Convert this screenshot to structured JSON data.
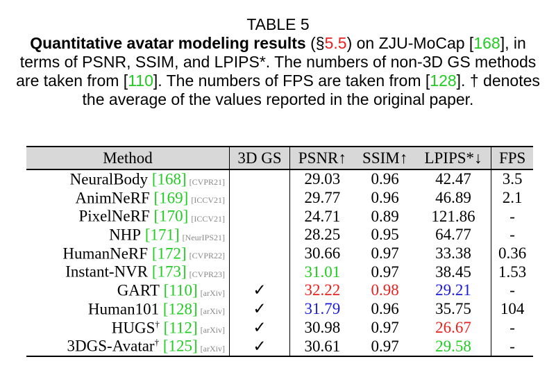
{
  "caption": {
    "label": "TABLE 5",
    "title": "Quantitative avatar modeling results",
    "sec_open": " (§",
    "sec": "5.5",
    "on_text": ") on ZJU-MoCap [",
    "on_ref": "168",
    "rest1": "], in terms of PSNR, SSIM, and LPIPS*. The numbers of non-3D GS methods are taken from [",
    "ref2": "110",
    "rest2": "]. The numbers of FPS are taken from [",
    "ref3": "128",
    "rest3": "]. † denotes the average of the values reported in the original paper."
  },
  "table": {
    "headers": [
      "Method",
      "3D GS",
      "PSNR↑",
      "SSIM↑",
      "LPIPS*↓",
      "FPS"
    ],
    "rows": [
      {
        "name": "NeuralBody",
        "dagger": "",
        "ref": "168",
        "venue": "[CVPR21]",
        "gs": "",
        "psnr": "29.03",
        "ssim": "0.96",
        "lpips": "42.47",
        "fps": "3.5"
      },
      {
        "name": "AnimNeRF",
        "dagger": "",
        "ref": "169",
        "venue": "[ICCV21]",
        "gs": "",
        "psnr": "29.77",
        "ssim": "0.96",
        "lpips": "46.89",
        "fps": "2.1"
      },
      {
        "name": "PixelNeRF",
        "dagger": "",
        "ref": "170",
        "venue": "[ICCV21]",
        "gs": "",
        "psnr": "24.71",
        "ssim": "0.89",
        "lpips": "121.86",
        "fps": "-"
      },
      {
        "name": "NHP",
        "dagger": "",
        "ref": "171",
        "venue": "[NeurIPS21]",
        "gs": "",
        "psnr": "28.25",
        "ssim": "0.95",
        "lpips": "64.77",
        "fps": "-"
      },
      {
        "name": "HumanNeRF",
        "dagger": "",
        "ref": "172",
        "venue": "[CVPR22]",
        "gs": "",
        "psnr": "30.66",
        "ssim": "0.97",
        "lpips": "33.38",
        "fps": "0.36"
      },
      {
        "name": "Instant-NVR",
        "dagger": "",
        "ref": "173",
        "venue": "[CVPR23]",
        "gs": "",
        "psnr": "31.01",
        "ssim": "0.97",
        "lpips": "38.45",
        "fps": "1.53"
      },
      {
        "name": "GART",
        "dagger": "",
        "ref": "110",
        "venue": "[arXiv]",
        "gs": "✓",
        "psnr": "32.22",
        "ssim": "0.98",
        "lpips": "29.21",
        "fps": "-"
      },
      {
        "name": "Human101",
        "dagger": "",
        "ref": "128",
        "venue": "[arXiv]",
        "gs": "✓",
        "psnr": "31.79",
        "ssim": "0.96",
        "lpips": "35.75",
        "fps": "104"
      },
      {
        "name": "HUGS",
        "dagger": "†",
        "ref": "112",
        "venue": "[arXiv]",
        "gs": "✓",
        "psnr": "30.98",
        "ssim": "0.97",
        "lpips": "26.67",
        "fps": "-"
      },
      {
        "name": "3DGS-Avatar",
        "dagger": "†",
        "ref": "125",
        "venue": "[arXiv]",
        "gs": "✓",
        "psnr": "30.61",
        "ssim": "0.97",
        "lpips": "29.58",
        "fps": "-"
      }
    ],
    "colors": {
      "red": "#e8211f",
      "green": "#22cc22",
      "blue": "#1a1adb"
    }
  }
}
